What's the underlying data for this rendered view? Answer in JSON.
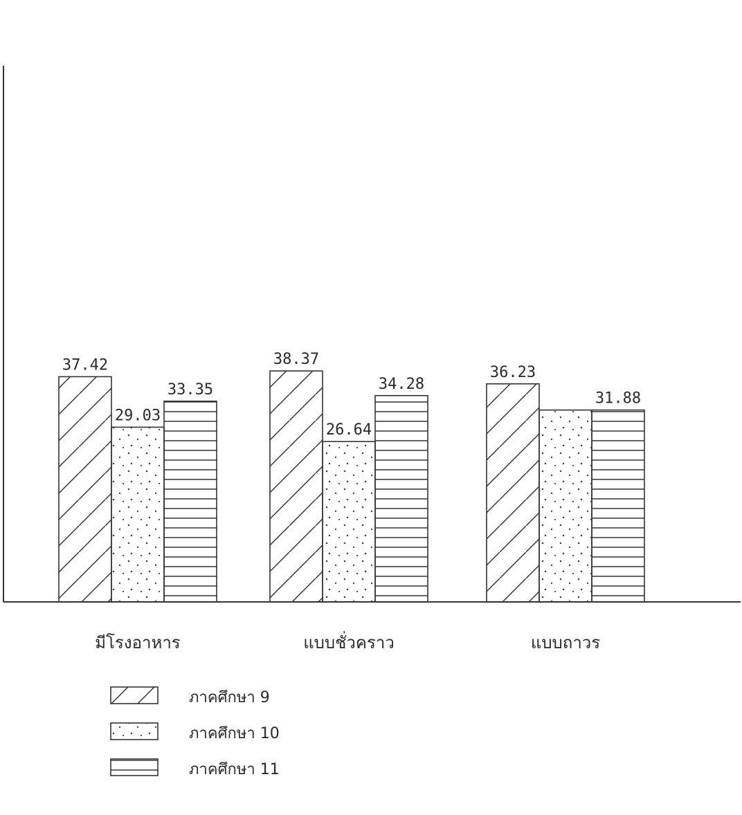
{
  "chart_data": {
    "type": "bar",
    "categories": [
      "มีโรงอาหาร",
      "แบบชั่วคราว",
      "แบบถาวร"
    ],
    "series": [
      {
        "name": "ภาคศึกษา 9",
        "values": [
          37.42,
          38.37,
          36.23
        ],
        "labels": [
          "37.42",
          "38.37",
          "36.23"
        ],
        "pattern": "diagonal"
      },
      {
        "name": "ภาคศึกษา 10",
        "values": [
          29.03,
          26.64,
          31.88
        ],
        "labels": [
          "29.03",
          "26.64",
          ""
        ],
        "pattern": "dots"
      },
      {
        "name": "ภาคศึกษา 11",
        "values": [
          33.35,
          34.28,
          31.88
        ],
        "labels": [
          "33.35",
          "34.28",
          "31.88"
        ],
        "pattern": "horizontal"
      }
    ],
    "ylim": [
      0,
      40
    ],
    "grid": false,
    "legend_position": "bottom-left",
    "colors": {
      "ink": "#333333",
      "text": "#2a2a2a",
      "background": "#ffffff"
    }
  }
}
